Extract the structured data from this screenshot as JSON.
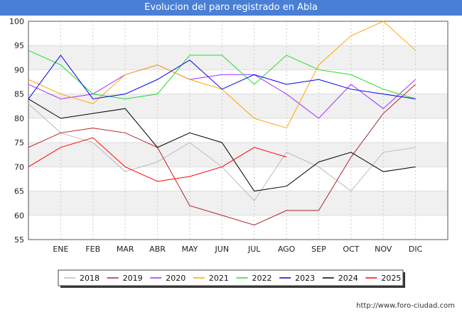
{
  "title": "Evolucion del paro registrado en Abla",
  "credit": "http://www.foro-ciudad.com",
  "chart_data": {
    "type": "line",
    "title": "Evolucion del paro registrado en Abla",
    "categories": [
      "",
      "ENE",
      "FEB",
      "MAR",
      "ABR",
      "MAY",
      "JUN",
      "JUL",
      "AGO",
      "SEP",
      "OCT",
      "NOV",
      "DIC"
    ],
    "ylim": [
      55,
      100
    ],
    "yticks": [
      55,
      60,
      65,
      70,
      75,
      80,
      85,
      90,
      95,
      100
    ],
    "grid": true,
    "legend_position": "bottom",
    "series": [
      {
        "name": "2018",
        "color": "#bbbbbb",
        "values": [
          83,
          77,
          75,
          69,
          71,
          75,
          70,
          63,
          73,
          70,
          65,
          73,
          74
        ]
      },
      {
        "name": "2019",
        "color": "#b22222",
        "values": [
          74,
          77,
          78,
          77,
          74,
          62,
          60,
          58,
          61,
          61,
          72,
          81,
          87
        ]
      },
      {
        "name": "2020",
        "color": "#9b30ff",
        "values": [
          87,
          84,
          85,
          89,
          91,
          88,
          89,
          89,
          85,
          80,
          87,
          82,
          88
        ]
      },
      {
        "name": "2021",
        "color": "#ffa500",
        "values": [
          88,
          85,
          83,
          89,
          91,
          88,
          86,
          80,
          78,
          91,
          97,
          100,
          94
        ]
      },
      {
        "name": "2022",
        "color": "#22dd22",
        "values": [
          94,
          91,
          85,
          84,
          85,
          93,
          93,
          87,
          93,
          90,
          89,
          86,
          84
        ]
      },
      {
        "name": "2023",
        "color": "#0000ee",
        "values": [
          84,
          93,
          84,
          85,
          88,
          92,
          86,
          89,
          87,
          88,
          86,
          85,
          84
        ]
      },
      {
        "name": "2024",
        "color": "#000000",
        "values": [
          84,
          80,
          81,
          82,
          74,
          77,
          75,
          65,
          66,
          71,
          73,
          69,
          70
        ]
      },
      {
        "name": "2025",
        "color": "#ff0000",
        "values": [
          70,
          74,
          76,
          70,
          67,
          68,
          70,
          74,
          72,
          null,
          null,
          null,
          null
        ]
      }
    ]
  }
}
